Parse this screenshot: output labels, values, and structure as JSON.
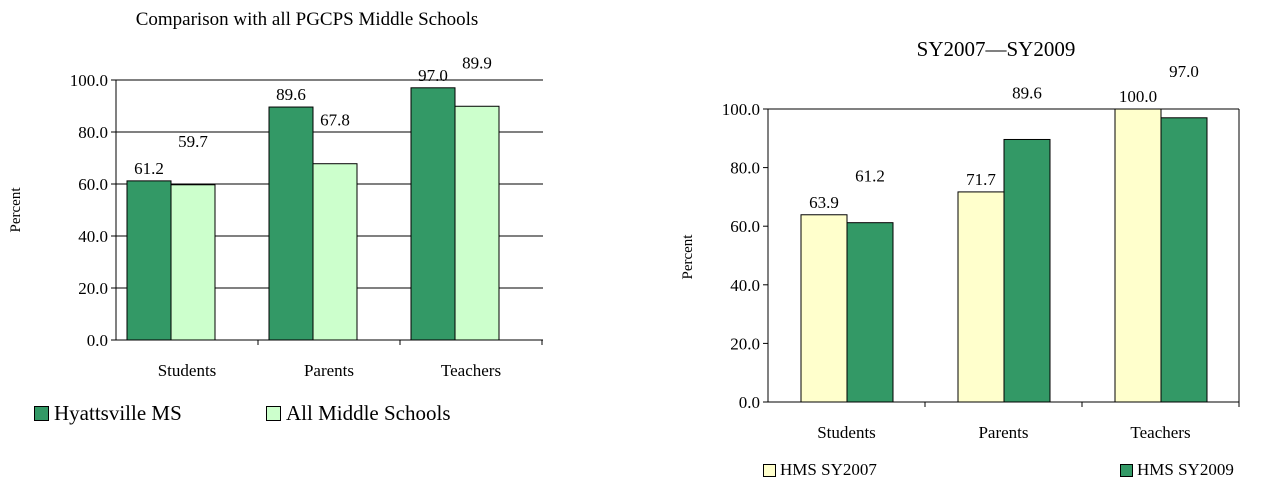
{
  "chart_data": [
    {
      "type": "bar",
      "title": "Comparison with all PGCPS Middle Schools",
      "xlabel": "",
      "ylabel": "Percent",
      "categories": [
        "Students",
        "Parents",
        "Teachers"
      ],
      "series": [
        {
          "name": "Hyattsville MS",
          "values": [
            61.2,
            89.6,
            97.0
          ],
          "labels": [
            "61.2",
            "89.6",
            "97.0"
          ],
          "color": "#339966"
        },
        {
          "name": "All Middle Schools",
          "values": [
            59.7,
            67.8,
            89.9
          ],
          "labels": [
            "59.7",
            "67.8",
            "89.9"
          ],
          "color": "#ccffcc"
        }
      ],
      "ylim": [
        0,
        100
      ],
      "yticks": [
        "0.0",
        "20.0",
        "40.0",
        "60.0",
        "80.0",
        "100.0"
      ],
      "grid": true,
      "legend": "bottom"
    },
    {
      "type": "bar",
      "title": "SY2007—SY2009",
      "xlabel": "",
      "ylabel": "Percent",
      "categories": [
        "Students",
        "Parents",
        "Teachers"
      ],
      "series": [
        {
          "name": "HMS SY2007",
          "values": [
            63.9,
            71.7,
            100.0
          ],
          "labels": [
            "63.9",
            "71.7",
            "100.0"
          ],
          "color": "#ffffcc"
        },
        {
          "name": "HMS SY2009",
          "values": [
            61.2,
            89.6,
            97.0
          ],
          "labels": [
            "61.2",
            "89.6",
            "97.0"
          ],
          "color": "#339966"
        }
      ],
      "ylim": [
        0,
        100
      ],
      "yticks": [
        "0.0",
        "20.0",
        "40.0",
        "60.0",
        "80.0",
        "100.0"
      ],
      "grid": false,
      "legend": "bottom"
    }
  ]
}
